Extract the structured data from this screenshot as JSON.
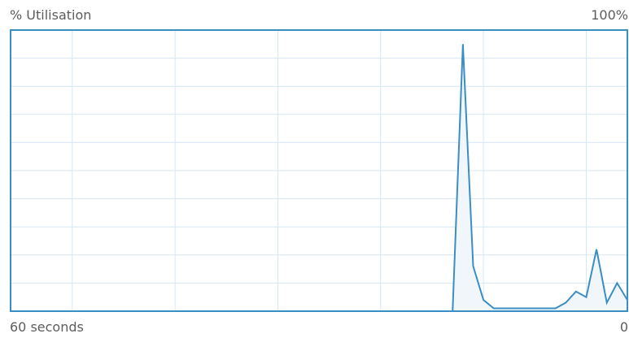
{
  "labels": {
    "top_left": "% Utilisation",
    "top_right": "100%",
    "bottom_left": "60 seconds",
    "bottom_right": "0"
  },
  "colors": {
    "border": "#3a8ec4",
    "grid": "#d6e7f4",
    "line": "#3a8ec4",
    "fill": "#f1f6fb",
    "text": "#5c5c5c"
  },
  "chart_data": {
    "type": "area",
    "title": "% Utilisation",
    "xlabel": "",
    "ylabel": "",
    "xlim": [
      60,
      0
    ],
    "ylim": [
      0,
      100
    ],
    "grid": true,
    "x_gridlines": [
      54,
      44,
      34,
      24,
      14,
      4
    ],
    "y_gridlines": [
      10,
      20,
      30,
      40,
      50,
      60,
      70,
      80,
      90
    ],
    "x": [
      60,
      17,
      16,
      15,
      14,
      13,
      12,
      11,
      10,
      9,
      8,
      7,
      6,
      5,
      4,
      3,
      2,
      1,
      0
    ],
    "values": [
      0,
      0,
      95,
      16,
      4,
      1,
      1,
      1,
      1,
      1,
      1,
      1,
      3,
      7,
      5,
      22,
      3,
      10,
      4
    ]
  }
}
